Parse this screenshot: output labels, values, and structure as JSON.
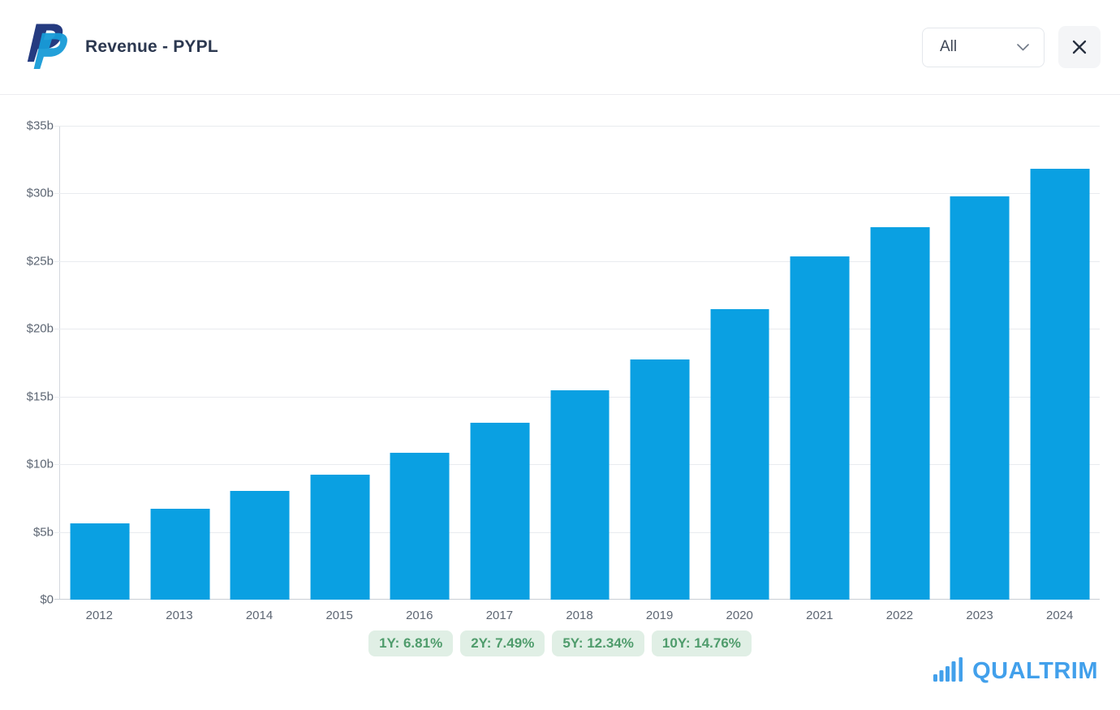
{
  "header": {
    "title": "Revenue - PYPL",
    "logo": "paypal-logo",
    "range_select": {
      "value": "All"
    },
    "close": "close-icon"
  },
  "chart_data": {
    "type": "bar",
    "title": "Revenue - PYPL",
    "categories": [
      "2012",
      "2013",
      "2014",
      "2015",
      "2016",
      "2017",
      "2018",
      "2019",
      "2020",
      "2021",
      "2022",
      "2023",
      "2024"
    ],
    "values": [
      5.66,
      6.73,
      8.03,
      9.25,
      10.84,
      13.09,
      15.45,
      17.77,
      21.45,
      25.37,
      27.52,
      29.77,
      31.8
    ],
    "unit": "USD billions",
    "xlabel": "",
    "ylabel": "",
    "ylim": [
      0,
      35
    ],
    "ytick_step": 5,
    "ytick_labels": [
      "$0",
      "$5b",
      "$10b",
      "$15b",
      "$20b",
      "$25b",
      "$30b",
      "$35b"
    ],
    "grid": true,
    "legend_position": "none",
    "bar_color": "#0AA0E2",
    "bar_width_fraction": 0.74
  },
  "badges": [
    "1Y: 6.81%",
    "2Y: 7.49%",
    "5Y: 12.34%",
    "10Y: 14.76%"
  ],
  "branding": {
    "name": "QUALTRIM",
    "icon": "bar-chart-icon",
    "color": "#42A0EB"
  },
  "colors": {
    "bar_blue": "#0AA0E2",
    "badge_bg": "#E0EFE5",
    "badge_text": "#4F9C6C",
    "brand_blue": "#42A0EB",
    "paypal_navy": "#253B80",
    "paypal_blue": "#179BD7",
    "gridline": "#E9EBEF",
    "axis_line": "#C9CED5",
    "axis_text": "#5D6673",
    "title_text": "#2C3850"
  }
}
